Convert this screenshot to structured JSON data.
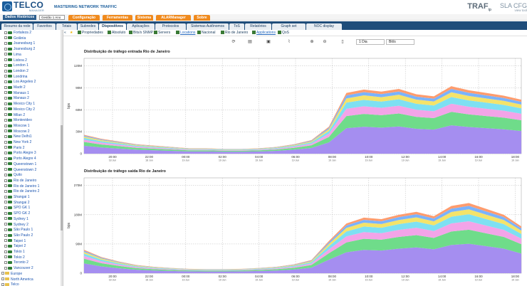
{
  "header": {
    "logo": "TELCO",
    "logo_sub": "MANAGER",
    "tagline": "MASTERING NETWORK TRAFFIC",
    "brand_traf": "TRAF",
    "brand_ip": "ip",
    "brand_sla": "SLA",
    "brand_cfg": "CFG",
    "brand_tools": "view tool"
  },
  "menubar": {
    "dados_label": "Dados Históricos",
    "period_select": "Gestão 1 Ano",
    "items": [
      "Configuração",
      "Ferramentas",
      "Sistema",
      "ALARManager",
      "Sobre"
    ]
  },
  "tabs": [
    "Resumo da rede",
    "Favoritos",
    "Totais",
    "Subredes",
    "Dispositivos",
    "Aplicações",
    "Protocolos",
    "Sistemas Autônomos",
    "ToS",
    "Relatórios",
    "Graph set",
    "NOC display"
  ],
  "active_tab": "Dispositivos",
  "subtool": {
    "items": [
      "Propriedades",
      "Absoluto",
      "Bits/s SNMP",
      "Servers",
      "Locations",
      "Nacional",
      "Rio de Janeiro",
      "Applications",
      "QoS"
    ]
  },
  "sidebar": {
    "items": [
      "Fortaleza 2",
      "Goiânia",
      "Joanesburg 1",
      "Joanesburg 2",
      "Lima",
      "Lisboa 2",
      "London 1",
      "London 2",
      "Londrina",
      "Los Angeles 2",
      "Madri 2",
      "Manaus 1",
      "Manaus 2",
      "Mexico City 1",
      "Mexico City 2",
      "Milan 2",
      "Montevideo",
      "Moscow 1",
      "Moscow 2",
      "New Delhi1",
      "New York 2",
      "Paris 2",
      "Porto Alegre 3",
      "Porto Alegre 4",
      "Queenstown 1",
      "Queenstown 2",
      "Quito",
      "Rio de Janeiro",
      "Rio de Janeiro 1",
      "Rio de Janeiro 2",
      "Shangai 1",
      "Shangai 2",
      "SPO GK 1",
      "SPO GK 2",
      "Sydney 1",
      "Sydney 2",
      "São Paulo 1",
      "São Paulo 2",
      "Taipei 1",
      "Taipei 2",
      "Tokio 1",
      "Tokio 2",
      "Toronto 2",
      "Vancouver 2"
    ],
    "folders": [
      "Europe",
      "North America",
      "Telco"
    ]
  },
  "toolbar": {
    "period": "1 Dia",
    "unit": "Bit/s"
  },
  "charts_meta": {
    "colors": [
      "#a58ef0",
      "#6fdc8a",
      "#f3a4e8",
      "#7ee0f2",
      "#f4e36a",
      "#7ab3ff",
      "#ff9c6e"
    ]
  },
  "chart_data": [
    {
      "type": "area",
      "title": "Distribuição de tráfego entrada Rio de Janeiro",
      "ylabel": "bps",
      "yticks": [
        "0",
        "30M",
        "60M",
        "90M",
        "120M"
      ],
      "ylim": [
        0,
        130
      ],
      "x_time_labels": [
        "20:00",
        "22:00",
        "00:00",
        "02:00",
        "04:00",
        "06:00",
        "08:00",
        "10:00",
        "12:00",
        "14:00",
        "16:00",
        "18:00"
      ],
      "x_date_labels": [
        "18 Jun",
        "18 Jun",
        "19 Jun",
        "19 Jun",
        "19 Jun",
        "19 Jun",
        "19 Jun",
        "19 Jun",
        "19 Jun",
        "19 Jun",
        "19 Jun",
        "19 Jun"
      ],
      "series_totals": [
        28,
        22,
        18,
        14,
        12,
        10,
        8,
        8,
        7,
        7,
        8,
        10,
        14,
        20,
        40,
        90,
        95,
        92,
        96,
        88,
        85,
        100,
        94,
        90,
        86,
        80
      ]
    },
    {
      "type": "area",
      "title": "Distribuição de tráfego saída Rio de Janeiro",
      "ylabel": "bps",
      "yticks": [
        "0",
        "90M",
        "180M",
        "270M"
      ],
      "ylim": [
        0,
        300
      ],
      "x_time_labels": [
        "20:00",
        "22:00",
        "00:00",
        "02:00",
        "04:00",
        "06:00",
        "08:00",
        "10:00",
        "12:00",
        "14:00",
        "16:00",
        "18:00"
      ],
      "x_date_labels": [
        "18 Jun",
        "18 Jun",
        "19 Jun",
        "19 Jun",
        "19 Jun",
        "19 Jun",
        "19 Jun",
        "19 Jun",
        "19 Jun",
        "19 Jun",
        "19 Jun",
        "19 Jun"
      ],
      "series_totals": [
        80,
        55,
        40,
        28,
        22,
        18,
        15,
        14,
        14,
        15,
        18,
        22,
        30,
        45,
        110,
        170,
        190,
        185,
        200,
        210,
        195,
        230,
        240,
        220,
        200,
        160
      ]
    }
  ]
}
